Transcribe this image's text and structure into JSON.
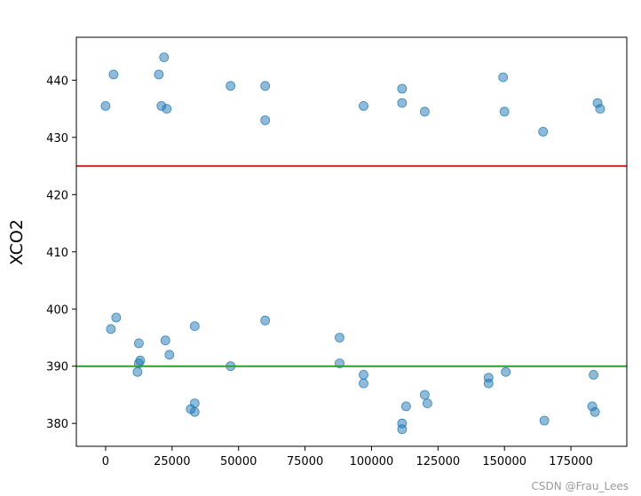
{
  "chart_data": {
    "type": "scatter",
    "title": "",
    "xlabel": "",
    "ylabel": "XCO2",
    "xlim": [
      -11000,
      196000
    ],
    "ylim": [
      376,
      447.5
    ],
    "xticks": [
      0,
      25000,
      50000,
      75000,
      100000,
      125000,
      150000,
      175000
    ],
    "yticks": [
      380,
      390,
      400,
      410,
      420,
      430,
      440
    ],
    "grid": false,
    "legend": "none",
    "marker_color": "#1f77b4",
    "marker_alpha": 0.5,
    "reference_lines": [
      {
        "y": 425,
        "color": "#d62728"
      },
      {
        "y": 390,
        "color": "#2ca02c"
      }
    ],
    "series": [
      {
        "points_x": [
          0,
          3000,
          4000,
          2000,
          12500,
          12500,
          12000,
          13000,
          20000,
          21000,
          22000,
          23000,
          24000,
          22500,
          33500,
          33500,
          33500,
          32000,
          47000,
          47000,
          60000,
          60000,
          60000,
          88000,
          88000,
          97000,
          97000,
          97000,
          111500,
          111500,
          111500,
          111500,
          113000,
          120000,
          120000,
          121000,
          144000,
          144000,
          149500,
          150000,
          150500,
          164500,
          165000,
          183000,
          184000,
          185000,
          186000,
          183500
        ],
        "points_y": [
          435.5,
          441,
          398.5,
          396.5,
          394,
          390.5,
          389,
          391,
          441,
          435.5,
          444,
          435,
          392,
          394.5,
          397,
          383.5,
          382,
          382.5,
          439,
          390,
          439,
          433,
          398,
          390.5,
          395,
          435.5,
          388.5,
          387,
          438.5,
          436,
          380,
          379,
          383,
          434.5,
          385,
          383.5,
          388,
          387,
          440.5,
          434.5,
          389,
          431,
          380.5,
          383,
          382,
          436,
          435,
          388.5
        ]
      }
    ]
  },
  "watermark": "CSDN @Frau_Lees"
}
